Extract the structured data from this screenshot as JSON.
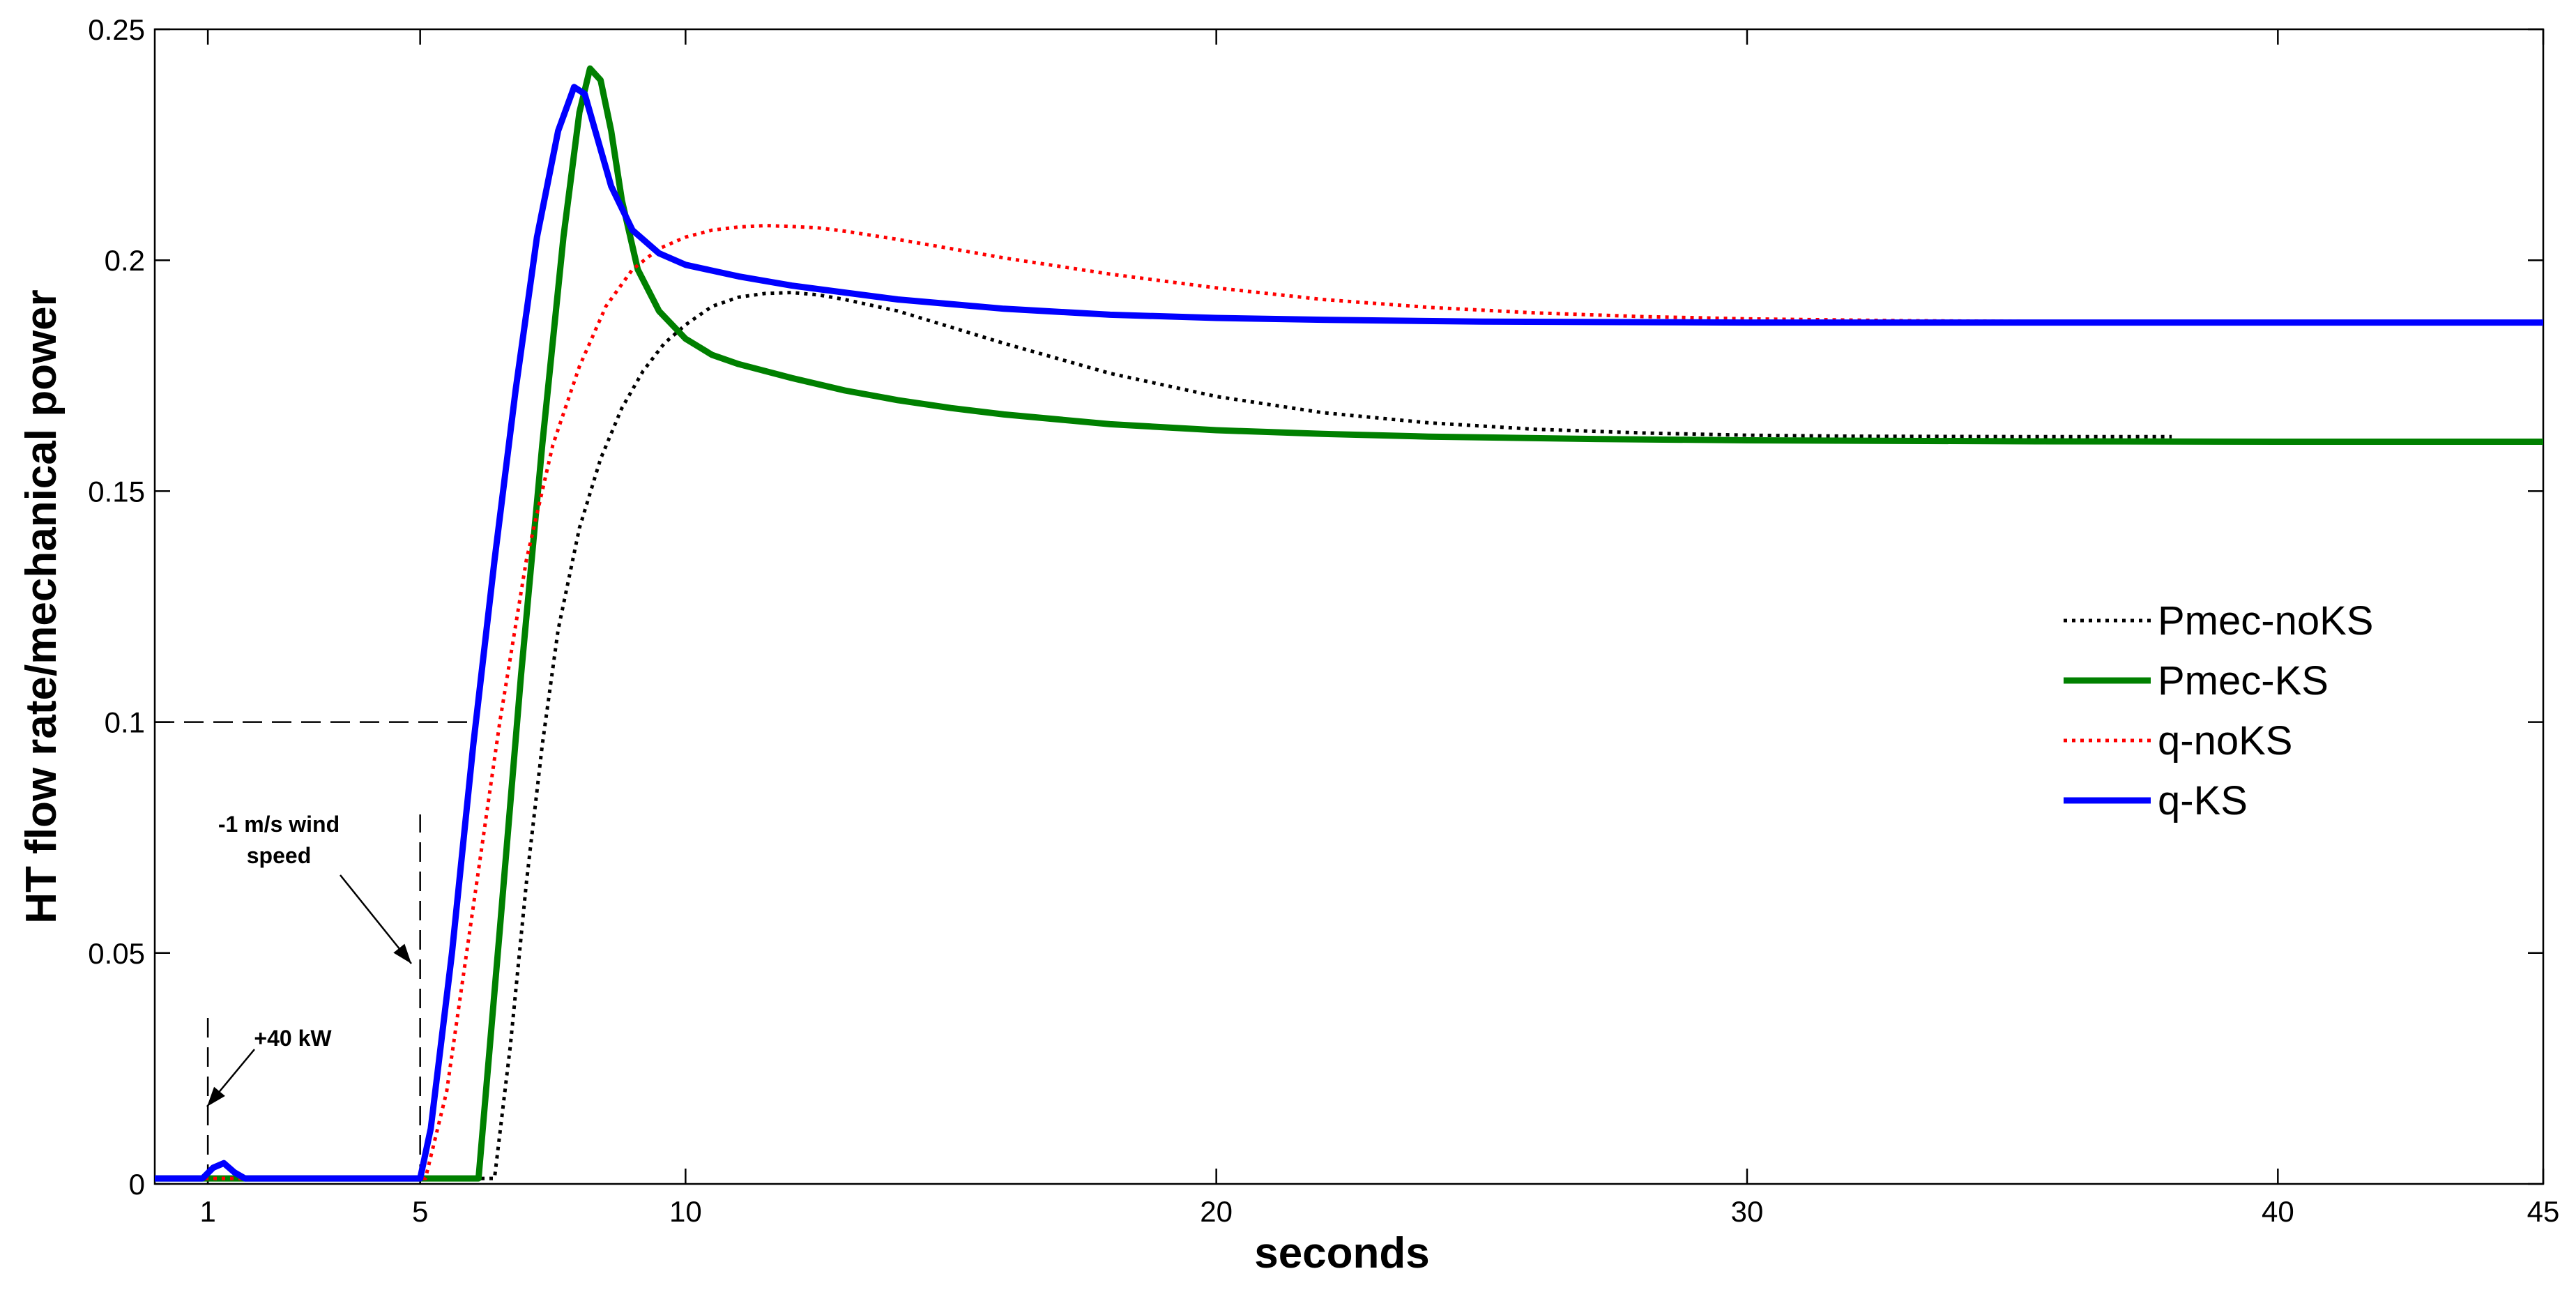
{
  "chart_data": {
    "type": "line",
    "title": "",
    "xlabel": "seconds",
    "ylabel": "HT flow rate/mechanical power",
    "xlim": [
      0,
      45
    ],
    "ylim": [
      0,
      0.25
    ],
    "x_ticks": [
      1,
      5,
      10,
      20,
      30,
      40,
      45
    ],
    "x_tick_labels": [
      "1",
      "5",
      "10",
      "20",
      "30",
      "40",
      "45"
    ],
    "y_ticks": [
      0,
      0.05,
      0.1,
      0.15,
      0.2,
      0.25
    ],
    "y_tick_labels": [
      "0",
      "0.05",
      "0.1",
      "0.15",
      "0.2",
      "0.25"
    ],
    "grid": false,
    "legend_position": "right",
    "series": [
      {
        "name": "Pmec-noKS",
        "color": "#000000",
        "style": "dotted",
        "x": [
          0,
          6.4,
          6.7,
          7.0,
          7.3,
          7.6,
          8.0,
          8.4,
          8.8,
          9.2,
          9.6,
          10.0,
          10.5,
          11.0,
          11.5,
          12.0,
          12.5,
          13.0,
          14.0,
          15.0,
          16.0,
          18.0,
          20.0,
          22.0,
          24.0,
          26.0,
          28.0,
          30.0,
          32.0,
          35.0,
          38.0
        ],
        "y": [
          0.0012,
          0.0012,
          0.03,
          0.065,
          0.095,
          0.12,
          0.142,
          0.157,
          0.168,
          0.176,
          0.182,
          0.186,
          0.19,
          0.192,
          0.1928,
          0.193,
          0.1925,
          0.1915,
          0.189,
          0.1855,
          0.182,
          0.1755,
          0.1705,
          0.167,
          0.1648,
          0.1634,
          0.1626,
          0.1621,
          0.1619,
          0.1618,
          0.1618
        ]
      },
      {
        "name": "Pmec-KS",
        "color": "#008000",
        "style": "solid",
        "x": [
          0,
          6.1,
          6.5,
          6.9,
          7.3,
          7.7,
          8.0,
          8.2,
          8.4,
          8.6,
          8.8,
          9.1,
          9.5,
          10.0,
          10.5,
          11.0,
          12.0,
          13.0,
          14.0,
          15.0,
          16.0,
          18.0,
          20.0,
          22.0,
          24.0,
          27.0,
          30.0,
          35.0,
          40.0,
          45.0
        ],
        "y": [
          0.0012,
          0.0012,
          0.055,
          0.11,
          0.16,
          0.205,
          0.232,
          0.2415,
          0.239,
          0.228,
          0.213,
          0.198,
          0.189,
          0.183,
          0.1795,
          0.1775,
          0.1745,
          0.1718,
          0.1697,
          0.168,
          0.1666,
          0.1645,
          0.1632,
          0.1624,
          0.1618,
          0.1613,
          0.161,
          0.1608,
          0.1607,
          0.1607
        ]
      },
      {
        "name": "q-noKS",
        "color": "#ff0000",
        "style": "dotted",
        "x": [
          0,
          5.1,
          5.5,
          6.0,
          6.5,
          7.0,
          7.5,
          8.0,
          8.5,
          9.0,
          9.5,
          10.0,
          10.5,
          11.0,
          11.5,
          12.0,
          12.5,
          13.0,
          14.0,
          15.0,
          16.0,
          18.0,
          20.0,
          22.0,
          24.0,
          26.0,
          28.0,
          30.0,
          33.0,
          36.0
        ],
        "y": [
          0.0012,
          0.0012,
          0.02,
          0.06,
          0.1,
          0.135,
          0.16,
          0.177,
          0.19,
          0.198,
          0.2025,
          0.205,
          0.2065,
          0.2072,
          0.2075,
          0.2073,
          0.207,
          0.2063,
          0.2045,
          0.2025,
          0.2005,
          0.197,
          0.194,
          0.1915,
          0.1898,
          0.1886,
          0.1878,
          0.1873,
          0.1869,
          0.1867
        ]
      },
      {
        "name": "q-KS",
        "color": "#0000ff",
        "style": "solid",
        "x": [
          0,
          0.9,
          1.1,
          1.3,
          1.5,
          1.7,
          2.0,
          4.5,
          5.0,
          5.2,
          5.6,
          6.0,
          6.4,
          6.8,
          7.2,
          7.6,
          7.9,
          8.1,
          8.3,
          8.6,
          9.0,
          9.5,
          10.0,
          11.0,
          12.0,
          13.0,
          14.0,
          15.0,
          16.0,
          18.0,
          20.0,
          22.0,
          25.0,
          30.0,
          35.0,
          40.0,
          45.0
        ],
        "y": [
          0.0012,
          0.0012,
          0.0035,
          0.0045,
          0.0025,
          0.0012,
          0.0012,
          0.0012,
          0.0012,
          0.012,
          0.05,
          0.095,
          0.135,
          0.172,
          0.205,
          0.228,
          0.2375,
          0.236,
          0.228,
          0.216,
          0.2065,
          0.2015,
          0.199,
          0.1965,
          0.1945,
          0.193,
          0.1915,
          0.1905,
          0.1895,
          0.1882,
          0.1875,
          0.1871,
          0.1867,
          0.1865,
          0.1865,
          0.1865,
          0.1865
        ]
      }
    ],
    "annotations": [
      {
        "text": "-1 m/s wind",
        "x": 5
      },
      {
        "text": "speed",
        "x": 5
      },
      {
        "text": "+40 kW",
        "x": 1
      }
    ],
    "reference_lines": {
      "h_dashed_y": 0.1,
      "h_dashed_x_end": 5.9,
      "v_dashed_1": {
        "x": 1,
        "y_top": 0.038
      },
      "v_dashed_5": {
        "x": 5,
        "y_top": 0.08
      }
    }
  }
}
